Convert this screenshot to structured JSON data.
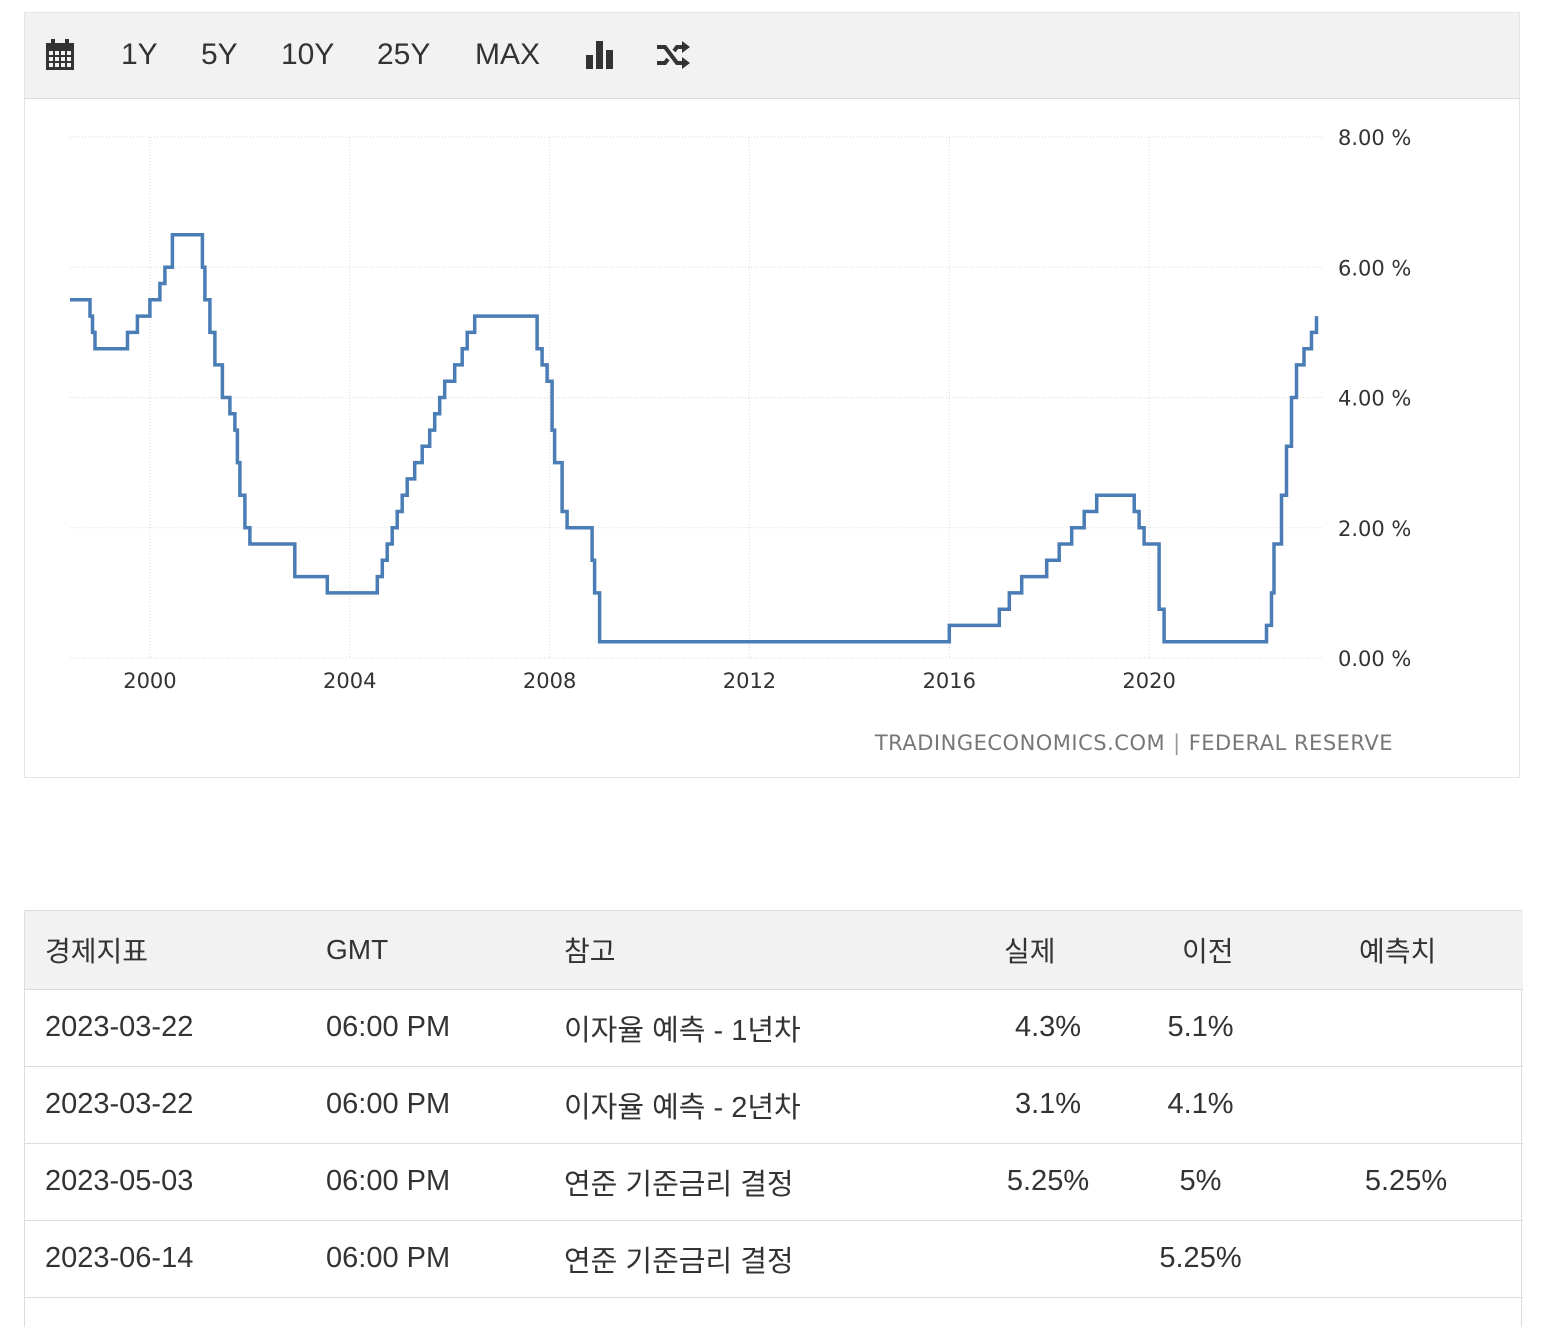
{
  "toolbar": {
    "calendar_icon": "calendar-icon",
    "ranges": [
      "1Y",
      "5Y",
      "10Y",
      "25Y",
      "MAX"
    ],
    "chart_type_icon": "bar-chart-icon",
    "shuffle_icon": "shuffle-icon"
  },
  "credit": {
    "source_site": "TRADINGECONOMICS.COM",
    "source_org": "FEDERAL RESERVE"
  },
  "chart_data": {
    "type": "line",
    "step": true,
    "line_color": "#4a7db5",
    "x_ticks": [
      "2000",
      "2004",
      "2008",
      "2012",
      "2016",
      "2020"
    ],
    "y_ticks": [
      "0.00 %",
      "2.00 %",
      "4.00 %",
      "6.00 %",
      "8.00 %"
    ],
    "ylim": [
      0,
      8
    ],
    "xlim": [
      1998.4,
      2023.5
    ],
    "grid": true,
    "y_axis_side": "right",
    "series": [
      {
        "points": [
          [
            1998.4,
            5.5
          ],
          [
            1998.7,
            5.5
          ],
          [
            1998.8,
            5.25
          ],
          [
            1998.85,
            5.0
          ],
          [
            1998.9,
            4.75
          ],
          [
            1999.5,
            4.75
          ],
          [
            1999.55,
            5.0
          ],
          [
            1999.7,
            5.0
          ],
          [
            1999.75,
            5.25
          ],
          [
            1999.9,
            5.25
          ],
          [
            2000.0,
            5.5
          ],
          [
            2000.15,
            5.5
          ],
          [
            2000.2,
            5.75
          ],
          [
            2000.3,
            6.0
          ],
          [
            2000.4,
            6.0
          ],
          [
            2000.45,
            6.5
          ],
          [
            2001.0,
            6.5
          ],
          [
            2001.05,
            6.0
          ],
          [
            2001.1,
            5.5
          ],
          [
            2001.2,
            5.0
          ],
          [
            2001.3,
            4.5
          ],
          [
            2001.45,
            4.0
          ],
          [
            2001.6,
            3.75
          ],
          [
            2001.7,
            3.5
          ],
          [
            2001.75,
            3.0
          ],
          [
            2001.8,
            2.5
          ],
          [
            2001.9,
            2.0
          ],
          [
            2002.0,
            1.75
          ],
          [
            2002.85,
            1.75
          ],
          [
            2002.9,
            1.25
          ],
          [
            2003.5,
            1.25
          ],
          [
            2003.55,
            1.0
          ],
          [
            2004.5,
            1.0
          ],
          [
            2004.55,
            1.25
          ],
          [
            2004.65,
            1.5
          ],
          [
            2004.75,
            1.75
          ],
          [
            2004.85,
            2.0
          ],
          [
            2004.95,
            2.25
          ],
          [
            2005.05,
            2.5
          ],
          [
            2005.15,
            2.75
          ],
          [
            2005.3,
            3.0
          ],
          [
            2005.45,
            3.25
          ],
          [
            2005.6,
            3.5
          ],
          [
            2005.7,
            3.75
          ],
          [
            2005.8,
            4.0
          ],
          [
            2005.9,
            4.25
          ],
          [
            2006.1,
            4.5
          ],
          [
            2006.25,
            4.75
          ],
          [
            2006.35,
            5.0
          ],
          [
            2006.5,
            5.25
          ],
          [
            2007.7,
            5.25
          ],
          [
            2007.75,
            4.75
          ],
          [
            2007.85,
            4.5
          ],
          [
            2007.95,
            4.25
          ],
          [
            2008.05,
            3.5
          ],
          [
            2008.1,
            3.0
          ],
          [
            2008.25,
            2.25
          ],
          [
            2008.35,
            2.0
          ],
          [
            2008.8,
            2.0
          ],
          [
            2008.85,
            1.5
          ],
          [
            2008.9,
            1.0
          ],
          [
            2009.0,
            0.25
          ],
          [
            2015.95,
            0.25
          ],
          [
            2016.0,
            0.5
          ],
          [
            2016.95,
            0.5
          ],
          [
            2017.0,
            0.75
          ],
          [
            2017.2,
            1.0
          ],
          [
            2017.45,
            1.25
          ],
          [
            2017.95,
            1.5
          ],
          [
            2018.2,
            1.75
          ],
          [
            2018.45,
            2.0
          ],
          [
            2018.7,
            2.25
          ],
          [
            2018.95,
            2.5
          ],
          [
            2019.55,
            2.5
          ],
          [
            2019.7,
            2.25
          ],
          [
            2019.8,
            2.0
          ],
          [
            2019.9,
            1.75
          ],
          [
            2020.15,
            1.75
          ],
          [
            2020.2,
            0.75
          ],
          [
            2020.3,
            0.25
          ],
          [
            2022.2,
            0.25
          ],
          [
            2022.35,
            0.5
          ],
          [
            2022.45,
            1.0
          ],
          [
            2022.5,
            1.75
          ],
          [
            2022.65,
            2.5
          ],
          [
            2022.75,
            3.25
          ],
          [
            2022.85,
            4.0
          ],
          [
            2022.95,
            4.5
          ],
          [
            2023.1,
            4.75
          ],
          [
            2023.25,
            5.0
          ],
          [
            2023.35,
            5.25
          ]
        ]
      }
    ]
  },
  "table": {
    "headers": {
      "indicator": "경제지표",
      "gmt": "GMT",
      "reference": "참고",
      "actual": "실제",
      "previous": "이전",
      "forecast": "예측치"
    },
    "rows": [
      {
        "date": "2023-03-22",
        "time": "06:00 PM",
        "event": "이자율 예측 - 1년차",
        "actual": "4.3%",
        "previous": "5.1%",
        "forecast": ""
      },
      {
        "date": "2023-03-22",
        "time": "06:00 PM",
        "event": "이자율 예측 - 2년차",
        "actual": "3.1%",
        "previous": "4.1%",
        "forecast": ""
      },
      {
        "date": "2023-05-03",
        "time": "06:00 PM",
        "event": "연준 기준금리 결정",
        "actual": "5.25%",
        "previous": "5%",
        "forecast": "5.25%"
      },
      {
        "date": "2023-06-14",
        "time": "06:00 PM",
        "event": "연준 기준금리 결정",
        "actual": "",
        "previous": "5.25%",
        "forecast": ""
      }
    ]
  }
}
